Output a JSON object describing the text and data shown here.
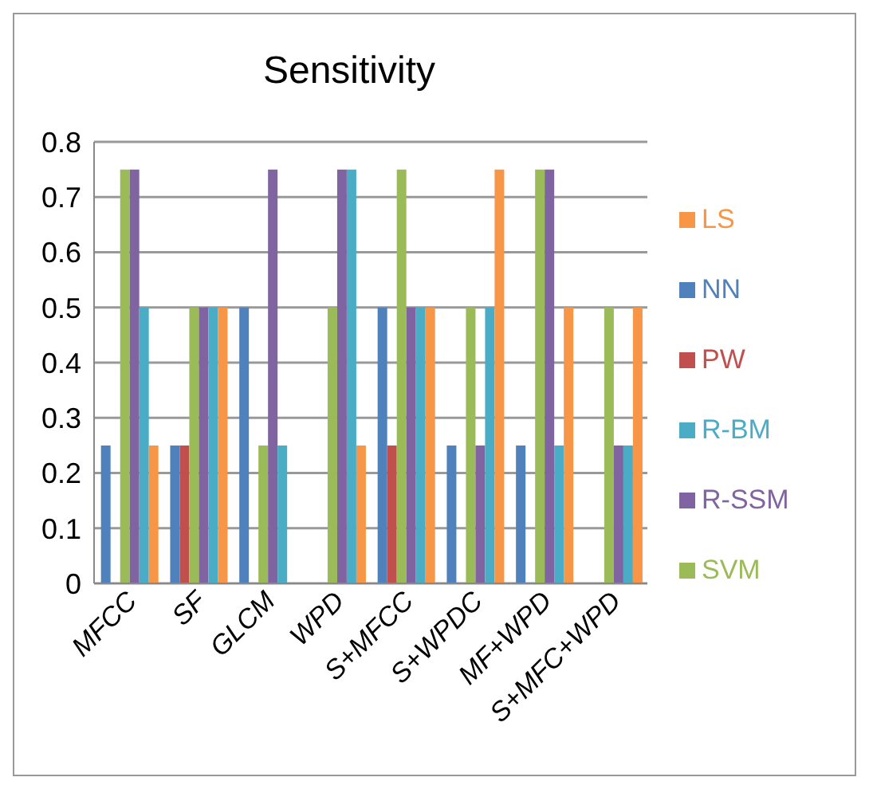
{
  "chart_data": {
    "type": "bar",
    "title": "Sensitivity",
    "categories": [
      "MFCC",
      "SF",
      "GLCM",
      "WPD",
      "S+MFCC",
      "S+WPDC",
      "MF+WPD",
      "S+MFC+WPD"
    ],
    "series": [
      {
        "name": "NN",
        "color": "#4f81bd",
        "values": [
          0.25,
          0.25,
          0.5,
          0,
          0.5,
          0.25,
          0.25,
          0
        ]
      },
      {
        "name": "PW",
        "color": "#c0504d",
        "values": [
          0,
          0.25,
          0,
          0,
          0.25,
          0,
          0,
          0
        ]
      },
      {
        "name": "SVM",
        "color": "#9bbb59",
        "values": [
          0.75,
          0.5,
          0.25,
          0.5,
          0.75,
          0.5,
          0.75,
          0.5
        ]
      },
      {
        "name": "R-SSM",
        "color": "#8064a2",
        "values": [
          0.75,
          0.5,
          0.75,
          0.75,
          0.5,
          0.25,
          0.75,
          0.25
        ]
      },
      {
        "name": "R-BM",
        "color": "#4bacc6",
        "values": [
          0.5,
          0.5,
          0.25,
          0.75,
          0.5,
          0.5,
          0.25,
          0.25
        ]
      },
      {
        "name": "LS",
        "color": "#f79646",
        "values": [
          0.25,
          0.5,
          0,
          0.25,
          0.5,
          0.75,
          0.5,
          0.5
        ]
      }
    ],
    "ylim": [
      0,
      0.8
    ],
    "yticks": [
      0,
      0.1,
      0.2,
      0.3,
      0.4,
      0.5,
      0.6,
      0.7,
      0.8
    ],
    "grid": "y",
    "legend": "right"
  }
}
